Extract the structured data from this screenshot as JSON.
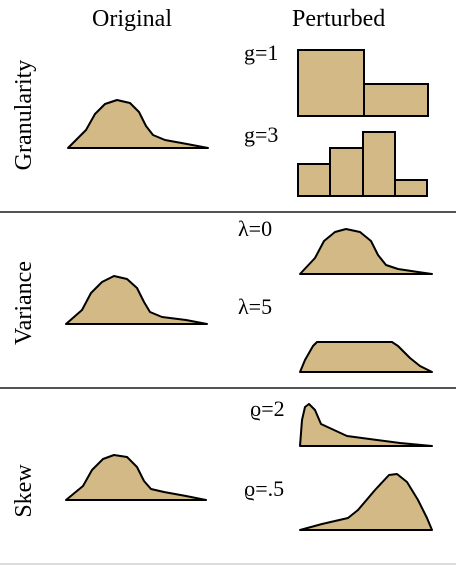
{
  "header": {
    "original": "Original",
    "perturbed": "Perturbed"
  },
  "rows": [
    {
      "label": "Granularity",
      "params": [
        "g=1",
        "g=3"
      ]
    },
    {
      "label": "Variance",
      "params": [
        "λ=0",
        "λ=5"
      ]
    },
    {
      "label": "Skew",
      "params": [
        "ϱ=2",
        "ϱ=.5"
      ]
    }
  ],
  "colors": {
    "fill": "#D2B985",
    "stroke": "#000000",
    "divider": "#555555"
  }
}
